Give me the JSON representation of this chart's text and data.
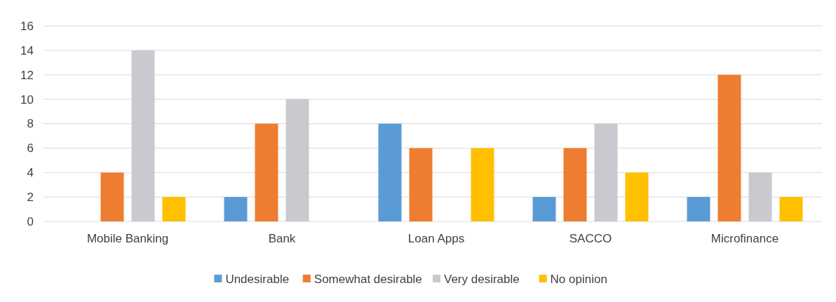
{
  "chart_data": {
    "type": "bar",
    "categories": [
      "Mobile Banking",
      "Bank",
      "Loan Apps",
      "SACCO",
      "Microfinance"
    ],
    "series": [
      {
        "name": "Undesirable",
        "color": "#5b9bd5",
        "values": [
          0,
          2,
          8,
          2,
          2
        ]
      },
      {
        "name": "Somewhat desirable",
        "color": "#ed7d31",
        "values": [
          4,
          8,
          6,
          6,
          12
        ]
      },
      {
        "name": "Very desirable",
        "color": "#c9c9cf",
        "values": [
          14,
          10,
          0,
          8,
          4
        ]
      },
      {
        "name": "No opinion",
        "color": "#ffc000",
        "values": [
          2,
          0,
          6,
          4,
          2
        ]
      }
    ],
    "ylim": [
      0,
      16
    ],
    "yticks": [
      0,
      2,
      4,
      6,
      8,
      10,
      12,
      14,
      16
    ],
    "grid": "y",
    "legend": "bottom"
  }
}
